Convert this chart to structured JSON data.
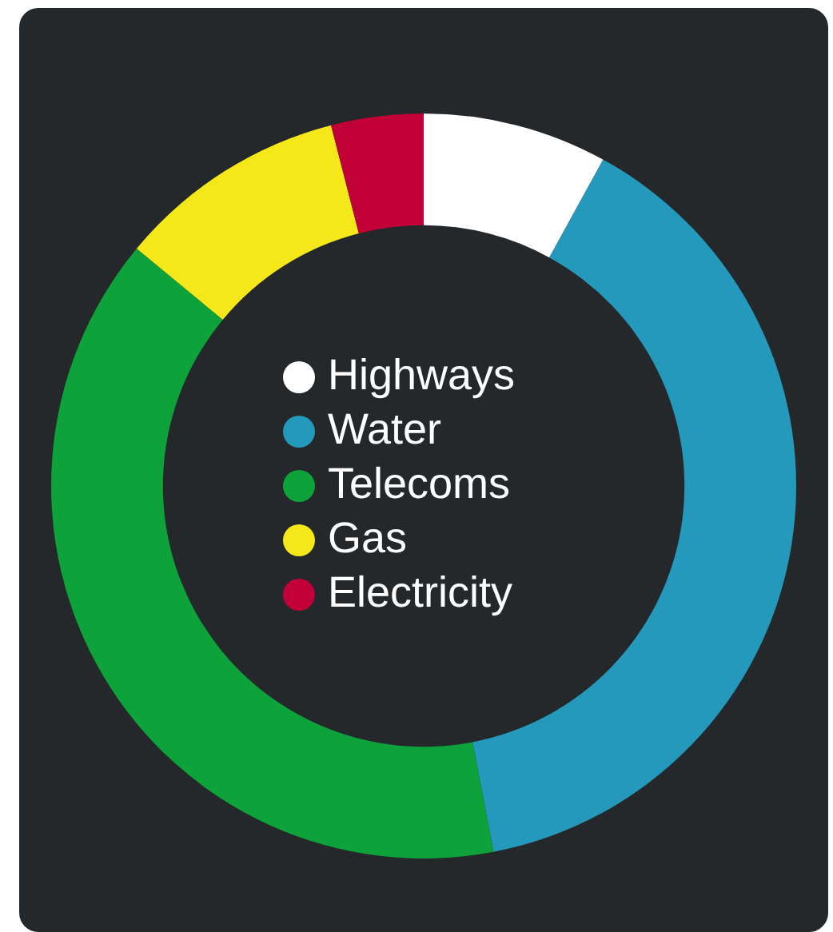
{
  "chart_data": {
    "type": "donut",
    "categories": [
      "Highways",
      "Water",
      "Telecoms",
      "Gas",
      "Electricity"
    ],
    "values": [
      8,
      39,
      39,
      10,
      4
    ],
    "colors": [
      "#ffffff",
      "#2599bb",
      "#0ea23a",
      "#f4e71a",
      "#c00036"
    ],
    "legend": "center"
  }
}
